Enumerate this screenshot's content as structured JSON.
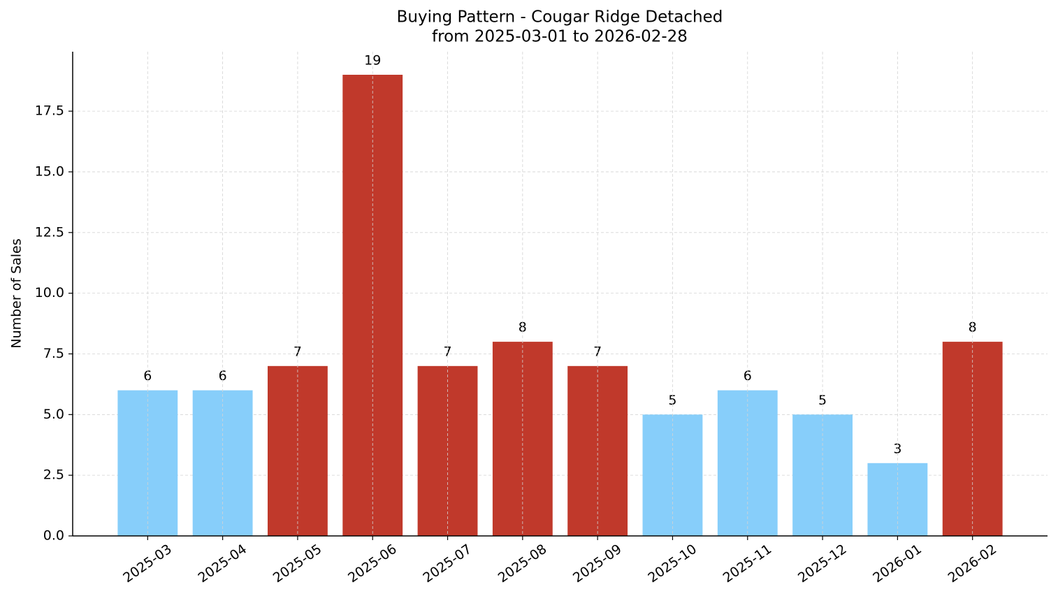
{
  "chart_data": {
    "type": "bar",
    "title": "Buying Pattern - Cougar Ridge Detached",
    "subtitle": "from 2025-03-01 to 2026-02-28",
    "y_label": "Number of Sales",
    "categories": [
      "2025-03",
      "2025-04",
      "2025-05",
      "2025-06",
      "2025-07",
      "2025-08",
      "2025-09",
      "2025-10",
      "2025-11",
      "2025-12",
      "2026-01",
      "2026-02"
    ],
    "values": [
      6,
      6,
      7,
      19,
      7,
      8,
      7,
      5,
      6,
      5,
      3,
      8
    ],
    "colors": [
      "#87cefa",
      "#87cefa",
      "#c0392b",
      "#c0392b",
      "#c0392b",
      "#c0392b",
      "#c0392b",
      "#87cefa",
      "#87cefa",
      "#87cefa",
      "#87cefa",
      "#c0392b"
    ],
    "ylim": [
      0,
      19.95
    ],
    "yticks": [
      {
        "value": 0,
        "label": "0.0"
      },
      2.5,
      {
        "value": 5,
        "label": "5.0"
      },
      7.5,
      {
        "value": 10,
        "label": "10.0"
      },
      12.5,
      {
        "value": 15,
        "label": "15.0"
      },
      17.5
    ],
    "grid": true
  }
}
